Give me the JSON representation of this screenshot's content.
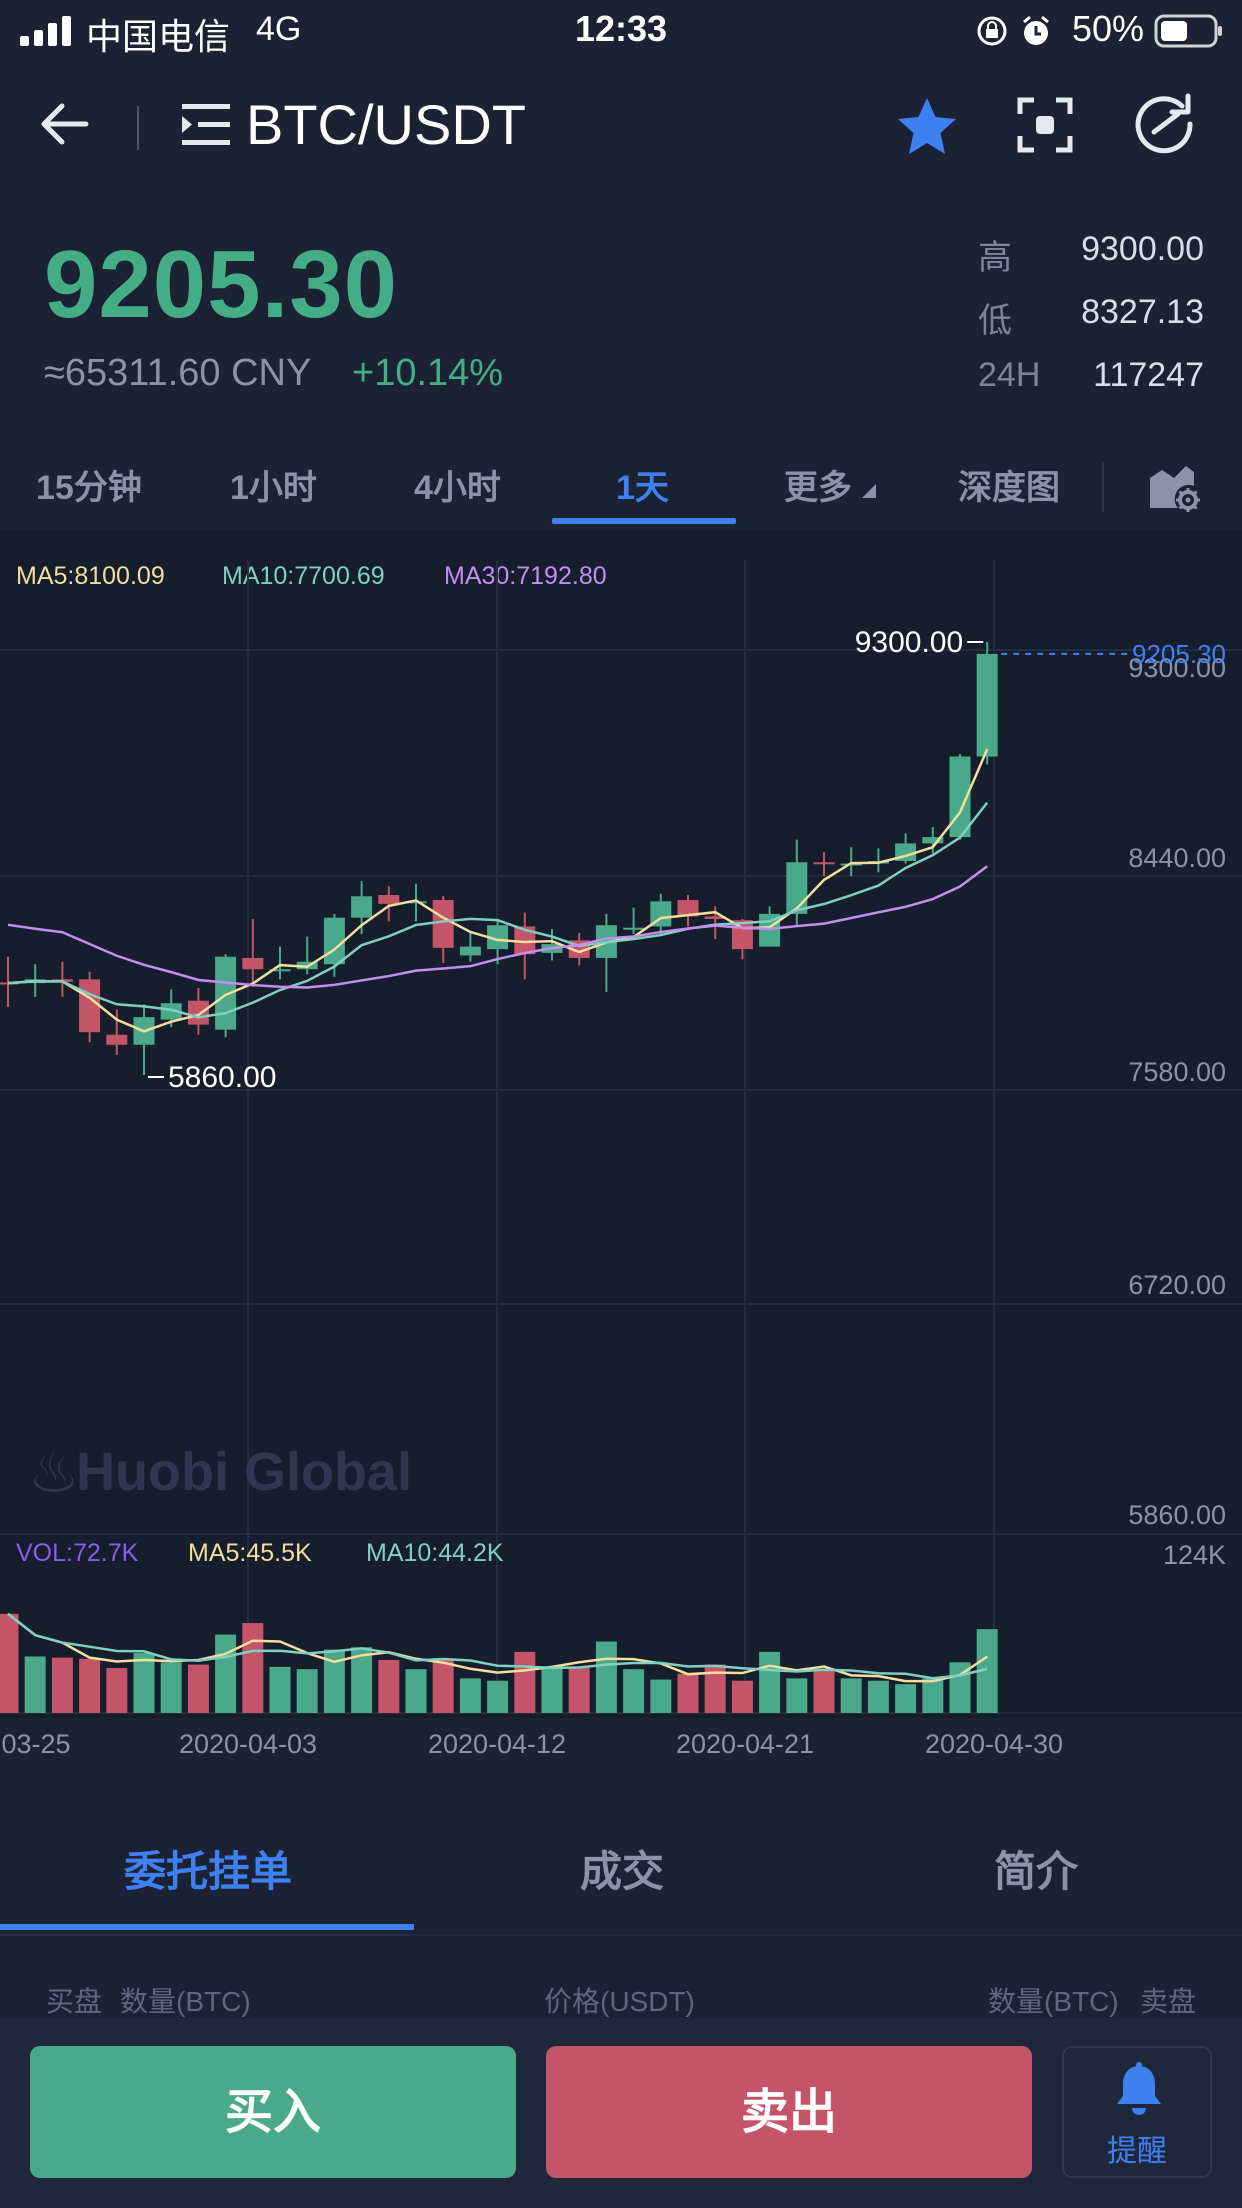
{
  "status_bar": {
    "carrier": "中国电信",
    "network": "4G",
    "time": "12:33",
    "battery": "50%"
  },
  "nav": {
    "title": "BTC/USDT",
    "icons": [
      "back-arrow-icon",
      "menu-list-icon",
      "star-icon",
      "scan-icon",
      "refresh-icon"
    ],
    "star_color": "#3f80f0"
  },
  "price": {
    "last": "9205.30",
    "cny": "≈65311.60 CNY",
    "change": "+10.14%",
    "stats": [
      {
        "label": "高",
        "value": "9300.00"
      },
      {
        "label": "低",
        "value": "8327.13"
      },
      {
        "label": "24H",
        "value": "117247"
      }
    ]
  },
  "tabs": {
    "items": [
      "15分钟",
      "1小时",
      "4小时",
      "1天",
      "更多",
      "深度图"
    ],
    "active": "1天"
  },
  "chart": {
    "ma": {
      "ma5": "MA5:8100.09",
      "ma10": "MA10:7700.69",
      "ma30": "MA30:7192.80"
    },
    "price_axis": [
      "9300.00",
      "8440.00",
      "7580.00",
      "6720.00",
      "5860.00"
    ],
    "current_price_tag": "9205.30",
    "high_marker": "9300.00",
    "low_marker": "5860.00",
    "watermark": "Huobi Global",
    "vol": {
      "vol": "VOL:72.7K",
      "ma5": "MA5:45.5K",
      "ma10": "MA10:44.2K",
      "axis_max": "124K"
    },
    "date_labels": [
      "03-25",
      "2020-04-03",
      "2020-04-12",
      "2020-04-21",
      "2020-04-30"
    ],
    "colors": {
      "up": "#4aa98a",
      "down": "#c45467",
      "ma5": "#f3df9c",
      "ma10": "#7fd0c2",
      "ma30": "#c48df0",
      "vol_label": "#8a5cf0"
    }
  },
  "chart_data": {
    "type": "candlestick",
    "series_order": [
      "open",
      "close",
      "high",
      "low"
    ],
    "candles": [
      {
        "o": 6595,
        "c": 6590,
        "h": 6800,
        "l": 6400
      },
      {
        "o": 6590,
        "c": 6620,
        "h": 6740,
        "l": 6480
      },
      {
        "o": 6620,
        "c": 6600,
        "h": 6760,
        "l": 6480
      },
      {
        "o": 6620,
        "c": 6200,
        "h": 6680,
        "l": 6120
      },
      {
        "o": 6180,
        "c": 6100,
        "h": 6380,
        "l": 6020
      },
      {
        "o": 6100,
        "c": 6320,
        "h": 6420,
        "l": 5860
      },
      {
        "o": 6300,
        "c": 6430,
        "h": 6540,
        "l": 6240
      },
      {
        "o": 6450,
        "c": 6260,
        "h": 6550,
        "l": 6180
      },
      {
        "o": 6220,
        "c": 6800,
        "h": 6820,
        "l": 6160
      },
      {
        "o": 6790,
        "c": 6700,
        "h": 7100,
        "l": 6560
      },
      {
        "o": 6700,
        "c": 6700,
        "h": 6880,
        "l": 6620
      },
      {
        "o": 6700,
        "c": 6760,
        "h": 6960,
        "l": 6660
      },
      {
        "o": 6740,
        "c": 7110,
        "h": 7140,
        "l": 6640
      },
      {
        "o": 7110,
        "c": 7280,
        "h": 7400,
        "l": 6980
      },
      {
        "o": 7290,
        "c": 7220,
        "h": 7360,
        "l": 7080
      },
      {
        "o": 7230,
        "c": 7240,
        "h": 7380,
        "l": 7080
      },
      {
        "o": 7250,
        "c": 6870,
        "h": 7280,
        "l": 6750
      },
      {
        "o": 6810,
        "c": 6880,
        "h": 7000,
        "l": 6760
      },
      {
        "o": 6860,
        "c": 7050,
        "h": 7080,
        "l": 6740
      },
      {
        "o": 7040,
        "c": 6820,
        "h": 7150,
        "l": 6620
      },
      {
        "o": 6830,
        "c": 6900,
        "h": 7020,
        "l": 6770
      },
      {
        "o": 6930,
        "c": 6790,
        "h": 6990,
        "l": 6730
      },
      {
        "o": 6790,
        "c": 7050,
        "h": 7140,
        "l": 6520
      },
      {
        "o": 7030,
        "c": 7030,
        "h": 7190,
        "l": 6980
      },
      {
        "o": 7040,
        "c": 7240,
        "h": 7300,
        "l": 6970
      },
      {
        "o": 7250,
        "c": 7120,
        "h": 7290,
        "l": 7040
      },
      {
        "o": 7120,
        "c": 7100,
        "h": 7200,
        "l": 6940
      },
      {
        "o": 7090,
        "c": 6860,
        "h": 7100,
        "l": 6780
      },
      {
        "o": 6880,
        "c": 7140,
        "h": 7200,
        "l": 6880
      },
      {
        "o": 7140,
        "c": 7550,
        "h": 7730,
        "l": 7040
      },
      {
        "o": 7550,
        "c": 7540,
        "h": 7630,
        "l": 7440
      },
      {
        "o": 7530,
        "c": 7540,
        "h": 7670,
        "l": 7440
      },
      {
        "o": 7540,
        "c": 7560,
        "h": 7660,
        "l": 7470
      },
      {
        "o": 7560,
        "c": 7700,
        "h": 7780,
        "l": 7540
      },
      {
        "o": 7700,
        "c": 7750,
        "h": 7830,
        "l": 7620
      },
      {
        "o": 7750,
        "c": 8390,
        "h": 8410,
        "l": 7730
      },
      {
        "o": 8390,
        "c": 9205.3,
        "h": 9300,
        "l": 8327.13
      }
    ],
    "volumes": [
      86,
      49,
      48,
      47,
      39,
      52,
      44,
      42,
      68,
      78,
      40,
      38,
      55,
      57,
      46,
      38,
      47,
      30,
      28,
      53,
      39,
      40,
      62,
      38,
      29,
      34,
      42,
      28,
      53,
      30,
      38,
      30,
      28,
      25,
      30,
      44,
      72.7
    ],
    "ylim": [
      5860,
      9300
    ],
    "vol_max": 124
  },
  "bottom_tabs": {
    "items": [
      "委托挂单",
      "成交",
      "简介"
    ],
    "active": "委托挂单"
  },
  "order_book_header": {
    "buy": "买盘",
    "buy_qty": "数量(BTC)",
    "price": "价格(USDT)",
    "sell_qty": "数量(BTC)",
    "sell": "卖盘"
  },
  "actions": {
    "buy": "买入",
    "sell": "卖出",
    "alert": "提醒"
  }
}
